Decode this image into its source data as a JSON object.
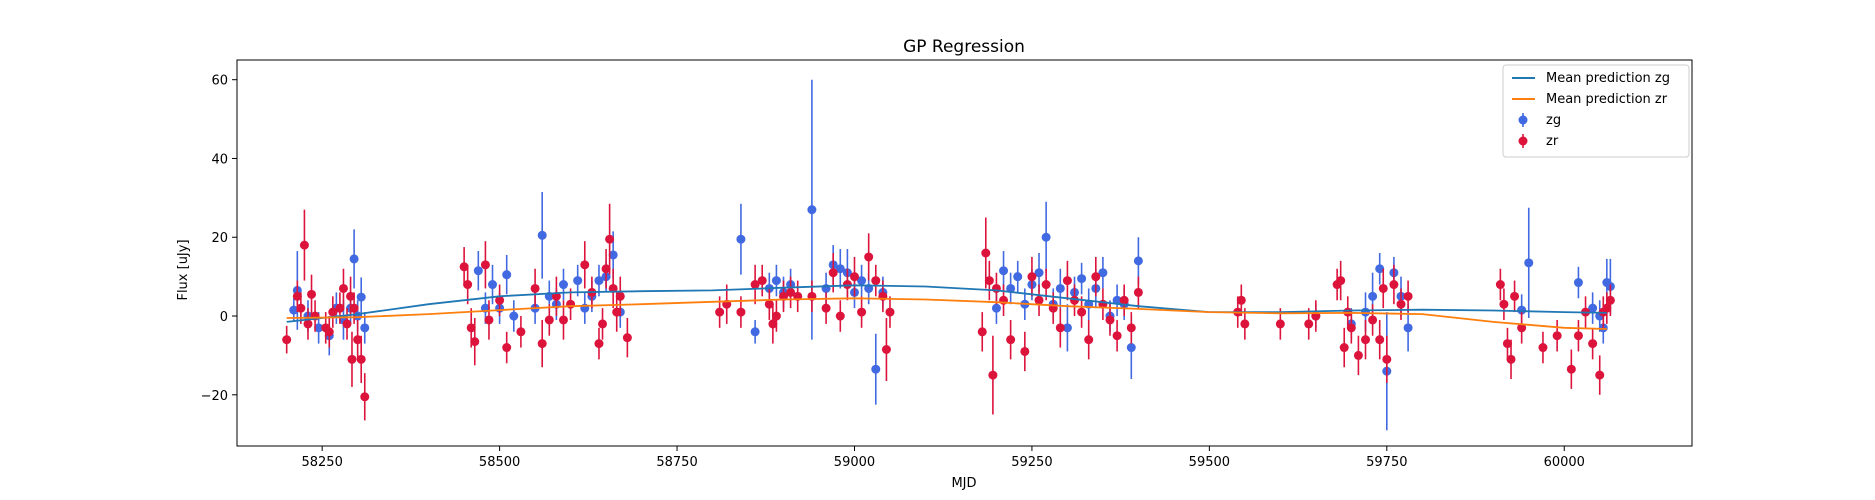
{
  "chart_data": {
    "type": "scatter",
    "title": "GP Regression",
    "xlabel": "MJD",
    "ylabel": "Flux [uJy]",
    "xlim": [
      58130,
      60180
    ],
    "ylim": [
      -33,
      65
    ],
    "xticks": [
      58250,
      58500,
      58750,
      59000,
      59250,
      59500,
      59750,
      60000
    ],
    "yticks": [
      -20,
      0,
      20,
      40,
      60
    ],
    "grid": false,
    "legend_position": "top-right",
    "legend": [
      {
        "label": "Mean prediction zg",
        "kind": "line",
        "color": "#1f77b4"
      },
      {
        "label": "Mean prediction zr",
        "kind": "line",
        "color": "#ff7f0e"
      },
      {
        "label": "zg",
        "kind": "errorbar",
        "color": "#4169e1"
      },
      {
        "label": "zr",
        "kind": "errorbar",
        "color": "#dc143c"
      }
    ],
    "lines": [
      {
        "name": "Mean prediction zg",
        "color": "#1f77b4",
        "points": [
          [
            58200,
            -1.5
          ],
          [
            58300,
            0.5
          ],
          [
            58400,
            3
          ],
          [
            58500,
            5
          ],
          [
            58600,
            6
          ],
          [
            58700,
            6.3
          ],
          [
            58800,
            6.5
          ],
          [
            58900,
            7.2
          ],
          [
            59000,
            7.8
          ],
          [
            59100,
            7.5
          ],
          [
            59200,
            6.5
          ],
          [
            59300,
            4.5
          ],
          [
            59400,
            2.5
          ],
          [
            59500,
            1
          ],
          [
            59600,
            1
          ],
          [
            59700,
            1.4
          ],
          [
            59800,
            1.6
          ],
          [
            59900,
            1.4
          ],
          [
            60000,
            1
          ],
          [
            60060,
            0.8
          ]
        ]
      },
      {
        "name": "Mean prediction zr",
        "color": "#ff7f0e",
        "points": [
          [
            58200,
            -0.5
          ],
          [
            58300,
            -0.3
          ],
          [
            58400,
            0.5
          ],
          [
            58500,
            1.5
          ],
          [
            58600,
            2.5
          ],
          [
            58700,
            3
          ],
          [
            58800,
            3.6
          ],
          [
            58900,
            4.2
          ],
          [
            59000,
            4.5
          ],
          [
            59100,
            4.2
          ],
          [
            59200,
            3.5
          ],
          [
            59300,
            2.5
          ],
          [
            59400,
            1.8
          ],
          [
            59500,
            1
          ],
          [
            59600,
            0.7
          ],
          [
            59700,
            0.8
          ],
          [
            59800,
            0.5
          ],
          [
            59900,
            -1.5
          ],
          [
            60000,
            -3
          ],
          [
            60060,
            -3.3
          ]
        ]
      }
    ],
    "series": [
      {
        "name": "zg",
        "color": "#4169e1",
        "points": [
          [
            58210,
            1.5,
            3
          ],
          [
            58215,
            6.5,
            10
          ],
          [
            58230,
            0,
            4
          ],
          [
            58245,
            -3,
            4
          ],
          [
            58260,
            -5,
            5
          ],
          [
            58270,
            2,
            4
          ],
          [
            58280,
            -1,
            5
          ],
          [
            58290,
            2,
            4
          ],
          [
            58295,
            14.5,
            7.5
          ],
          [
            58300,
            0,
            4
          ],
          [
            58305,
            4.8,
            5
          ],
          [
            58310,
            -3,
            4
          ],
          [
            58470,
            11.5,
            5
          ],
          [
            58480,
            2,
            4
          ],
          [
            58490,
            8,
            5
          ],
          [
            58500,
            2,
            4
          ],
          [
            58510,
            10.5,
            5
          ],
          [
            58520,
            0,
            4
          ],
          [
            58550,
            2,
            4
          ],
          [
            58560,
            20.5,
            11
          ],
          [
            58570,
            5,
            4
          ],
          [
            58580,
            3,
            4
          ],
          [
            58590,
            8,
            4
          ],
          [
            58610,
            9,
            4
          ],
          [
            58620,
            2,
            4
          ],
          [
            58630,
            5,
            4
          ],
          [
            58640,
            9,
            4
          ],
          [
            58650,
            10,
            4
          ],
          [
            58660,
            15.5,
            6
          ],
          [
            58670,
            1,
            4
          ],
          [
            58840,
            19.5,
            9
          ],
          [
            58860,
            -4,
            3
          ],
          [
            58880,
            7,
            4
          ],
          [
            58890,
            9,
            4
          ],
          [
            58900,
            6,
            4
          ],
          [
            58910,
            8,
            4
          ],
          [
            58940,
            27,
            33
          ],
          [
            58960,
            7,
            4
          ],
          [
            58970,
            13,
            5
          ],
          [
            58980,
            12,
            5
          ],
          [
            58990,
            11,
            6
          ],
          [
            59000,
            6,
            4
          ],
          [
            59010,
            9,
            4
          ],
          [
            59020,
            7,
            4
          ],
          [
            59030,
            -13.5,
            9
          ],
          [
            59040,
            6,
            4
          ],
          [
            59200,
            2,
            4
          ],
          [
            59210,
            11.5,
            5
          ],
          [
            59220,
            7,
            4
          ],
          [
            59230,
            10,
            4
          ],
          [
            59240,
            3,
            4
          ],
          [
            59250,
            8,
            4
          ],
          [
            59260,
            11,
            5
          ],
          [
            59270,
            20,
            9
          ],
          [
            59280,
            3,
            4
          ],
          [
            59290,
            7,
            5
          ],
          [
            59300,
            -3,
            6
          ],
          [
            59310,
            6,
            4
          ],
          [
            59320,
            9.5,
            4
          ],
          [
            59330,
            3,
            4
          ],
          [
            59340,
            7,
            5
          ],
          [
            59350,
            11,
            4
          ],
          [
            59360,
            0,
            4
          ],
          [
            59370,
            4,
            4
          ],
          [
            59380,
            3,
            4
          ],
          [
            59390,
            -8,
            8
          ],
          [
            59400,
            14,
            6
          ],
          [
            59650,
            0,
            3
          ],
          [
            59700,
            -2,
            4
          ],
          [
            59720,
            1,
            5
          ],
          [
            59730,
            5,
            6
          ],
          [
            59740,
            12,
            4
          ],
          [
            59750,
            -14,
            15
          ],
          [
            59760,
            11,
            4
          ],
          [
            59770,
            5,
            5
          ],
          [
            59780,
            -3,
            6
          ],
          [
            59940,
            1.5,
            4
          ],
          [
            59950,
            13.5,
            14
          ],
          [
            60020,
            8.5,
            4
          ],
          [
            60040,
            2,
            4
          ],
          [
            60050,
            0,
            4
          ],
          [
            60055,
            -3,
            4
          ],
          [
            60060,
            8.5,
            6
          ],
          [
            60065,
            7.5,
            7
          ]
        ]
      },
      {
        "name": "zr",
        "color": "#dc143c",
        "points": [
          [
            58200,
            -6,
            3.5
          ],
          [
            58215,
            5,
            4
          ],
          [
            58220,
            2,
            4
          ],
          [
            58225,
            18,
            9
          ],
          [
            58230,
            -2,
            4
          ],
          [
            58235,
            5.5,
            5
          ],
          [
            58240,
            0,
            4
          ],
          [
            58255,
            -3,
            4
          ],
          [
            58260,
            -4,
            4
          ],
          [
            58265,
            1,
            4
          ],
          [
            58275,
            2,
            4
          ],
          [
            58280,
            7,
            5
          ],
          [
            58285,
            -2,
            4
          ],
          [
            58290,
            5,
            5
          ],
          [
            58292,
            -11,
            7
          ],
          [
            58295,
            2,
            4
          ],
          [
            58300,
            -6,
            5
          ],
          [
            58305,
            -11,
            6
          ],
          [
            58310,
            -20.5,
            6
          ],
          [
            58450,
            12.5,
            5
          ],
          [
            58455,
            8,
            5
          ],
          [
            58460,
            -3,
            5
          ],
          [
            58465,
            -6.5,
            6
          ],
          [
            58480,
            13,
            6
          ],
          [
            58485,
            -1,
            5
          ],
          [
            58500,
            4,
            4
          ],
          [
            58510,
            -8,
            4
          ],
          [
            58530,
            -4,
            4
          ],
          [
            58550,
            7,
            5
          ],
          [
            58560,
            -7,
            6
          ],
          [
            58570,
            -1,
            4
          ],
          [
            58580,
            5,
            5
          ],
          [
            58590,
            -1,
            5
          ],
          [
            58600,
            3,
            4
          ],
          [
            58620,
            13,
            6
          ],
          [
            58630,
            6,
            4
          ],
          [
            58640,
            -7,
            4
          ],
          [
            58645,
            -2,
            4
          ],
          [
            58650,
            12,
            5
          ],
          [
            58655,
            19.5,
            9
          ],
          [
            58660,
            7,
            5
          ],
          [
            58665,
            1,
            5
          ],
          [
            58670,
            5,
            5
          ],
          [
            58680,
            -5.5,
            5
          ],
          [
            58810,
            1,
            4
          ],
          [
            58820,
            3,
            5
          ],
          [
            58840,
            1,
            4
          ],
          [
            58860,
            8,
            5
          ],
          [
            58870,
            9,
            4
          ],
          [
            58880,
            3,
            4
          ],
          [
            58885,
            -2,
            5
          ],
          [
            58890,
            0,
            4
          ],
          [
            58900,
            5,
            4
          ],
          [
            58910,
            6,
            4
          ],
          [
            58920,
            5,
            4
          ],
          [
            58940,
            5,
            4
          ],
          [
            58960,
            2,
            4
          ],
          [
            58970,
            11,
            5
          ],
          [
            58980,
            0,
            4
          ],
          [
            58990,
            8,
            4
          ],
          [
            59000,
            10,
            5
          ],
          [
            59010,
            1,
            4
          ],
          [
            59020,
            15,
            6
          ],
          [
            59030,
            9,
            4
          ],
          [
            59040,
            5,
            4
          ],
          [
            59045,
            -8.5,
            8
          ],
          [
            59050,
            1,
            4
          ],
          [
            59180,
            -4,
            5
          ],
          [
            59185,
            16,
            9
          ],
          [
            59190,
            9,
            5
          ],
          [
            59195,
            -15,
            10
          ],
          [
            59200,
            7,
            4
          ],
          [
            59210,
            4,
            4
          ],
          [
            59220,
            -6,
            5
          ],
          [
            59240,
            -9,
            5
          ],
          [
            59250,
            10,
            5
          ],
          [
            59260,
            4,
            4
          ],
          [
            59270,
            8,
            4
          ],
          [
            59280,
            2,
            4
          ],
          [
            59290,
            -3,
            5
          ],
          [
            59300,
            9,
            5
          ],
          [
            59310,
            4,
            4
          ],
          [
            59320,
            1,
            4
          ],
          [
            59330,
            -6,
            5
          ],
          [
            59340,
            10,
            5
          ],
          [
            59350,
            3,
            4
          ],
          [
            59360,
            -1,
            4
          ],
          [
            59370,
            -5,
            4
          ],
          [
            59380,
            4,
            4
          ],
          [
            59390,
            -3,
            4
          ],
          [
            59400,
            6,
            4
          ],
          [
            59540,
            1,
            4
          ],
          [
            59545,
            4,
            4
          ],
          [
            59550,
            -2,
            4
          ],
          [
            59600,
            -2,
            4
          ],
          [
            59640,
            -2,
            4
          ],
          [
            59650,
            0,
            4
          ],
          [
            59680,
            8,
            4
          ],
          [
            59685,
            9,
            5
          ],
          [
            59690,
            -8,
            5
          ],
          [
            59695,
            1,
            4
          ],
          [
            59700,
            -3,
            4
          ],
          [
            59710,
            -10,
            5
          ],
          [
            59720,
            -6,
            5
          ],
          [
            59730,
            -1,
            4
          ],
          [
            59740,
            -6,
            5
          ],
          [
            59745,
            7,
            5
          ],
          [
            59750,
            -11,
            6
          ],
          [
            59760,
            8,
            5
          ],
          [
            59770,
            3,
            4
          ],
          [
            59780,
            5,
            4
          ],
          [
            59910,
            8,
            4
          ],
          [
            59915,
            3,
            4
          ],
          [
            59920,
            -7,
            4
          ],
          [
            59925,
            -11,
            5
          ],
          [
            59930,
            5,
            4
          ],
          [
            59940,
            -3,
            4
          ],
          [
            59970,
            -8,
            4
          ],
          [
            59990,
            -5,
            4
          ],
          [
            60010,
            -13.5,
            5
          ],
          [
            60020,
            -5,
            4
          ],
          [
            60030,
            1,
            4
          ],
          [
            60040,
            -7,
            4
          ],
          [
            60050,
            -15,
            5
          ],
          [
            60055,
            1,
            4
          ],
          [
            60060,
            2,
            4
          ],
          [
            60065,
            4,
            4
          ]
        ]
      }
    ]
  }
}
